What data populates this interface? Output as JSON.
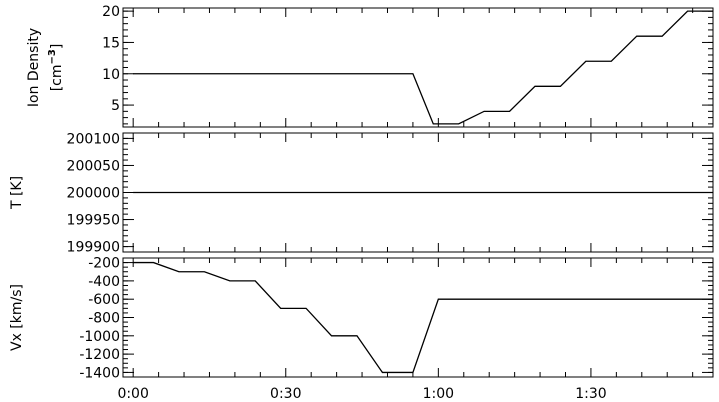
{
  "chart_data": [
    {
      "type": "line",
      "ylabel": "Ion Density",
      "ylabel_unit_prefix": "[cm",
      "ylabel_unit_exponent": "−3",
      "ylabel_unit_suffix": "]",
      "ylim": [
        1.5,
        20.5
      ],
      "yticks": [
        5,
        10,
        15,
        20
      ],
      "ytick_labels": [
        "5",
        "10",
        "15",
        "20"
      ],
      "yminor_step": 1,
      "series": [
        {
          "x": [
            0,
            55,
            59,
            64,
            69,
            74,
            79,
            84,
            89,
            94,
            99,
            104,
            109,
            114
          ],
          "y": [
            10,
            10,
            2,
            2,
            4,
            4,
            8,
            8,
            12,
            12,
            16,
            16,
            20,
            20
          ]
        }
      ]
    },
    {
      "type": "line",
      "ylabel": "T [K]",
      "ylim": [
        199890,
        200110
      ],
      "yticks": [
        199900,
        199950,
        200000,
        200050,
        200100
      ],
      "ytick_labels": [
        "199900",
        "199950",
        "200000",
        "200050",
        "200100"
      ],
      "yminor_step": 10,
      "series": [
        {
          "x": [
            0,
            114
          ],
          "y": [
            200000,
            200000
          ]
        }
      ]
    },
    {
      "type": "line",
      "ylabel": "Vx [km/s]",
      "ylim": [
        -1450,
        -150
      ],
      "yticks": [
        -1400,
        -1200,
        -1000,
        -800,
        -600,
        -400,
        -200
      ],
      "ytick_labels": [
        "-1400",
        "-1200",
        "-1000",
        "-800",
        "-600",
        "-400",
        "-200"
      ],
      "yminor_step": 50,
      "series": [
        {
          "x": [
            0,
            4,
            9,
            14,
            19,
            24,
            29,
            34,
            39,
            44,
            49,
            54,
            55,
            60,
            114
          ],
          "y": [
            -200,
            -200,
            -300,
            -300,
            -400,
            -400,
            -700,
            -700,
            -1000,
            -1000,
            -1400,
            -1400,
            -1400,
            -600,
            -600
          ]
        }
      ]
    }
  ],
  "x_axis": {
    "xlim": [
      -2,
      114
    ],
    "ticks": [
      0,
      30,
      60,
      90
    ],
    "tick_labels": [
      "0:00",
      "0:30",
      "1:00",
      "1:30"
    ],
    "minor_step": 5
  }
}
